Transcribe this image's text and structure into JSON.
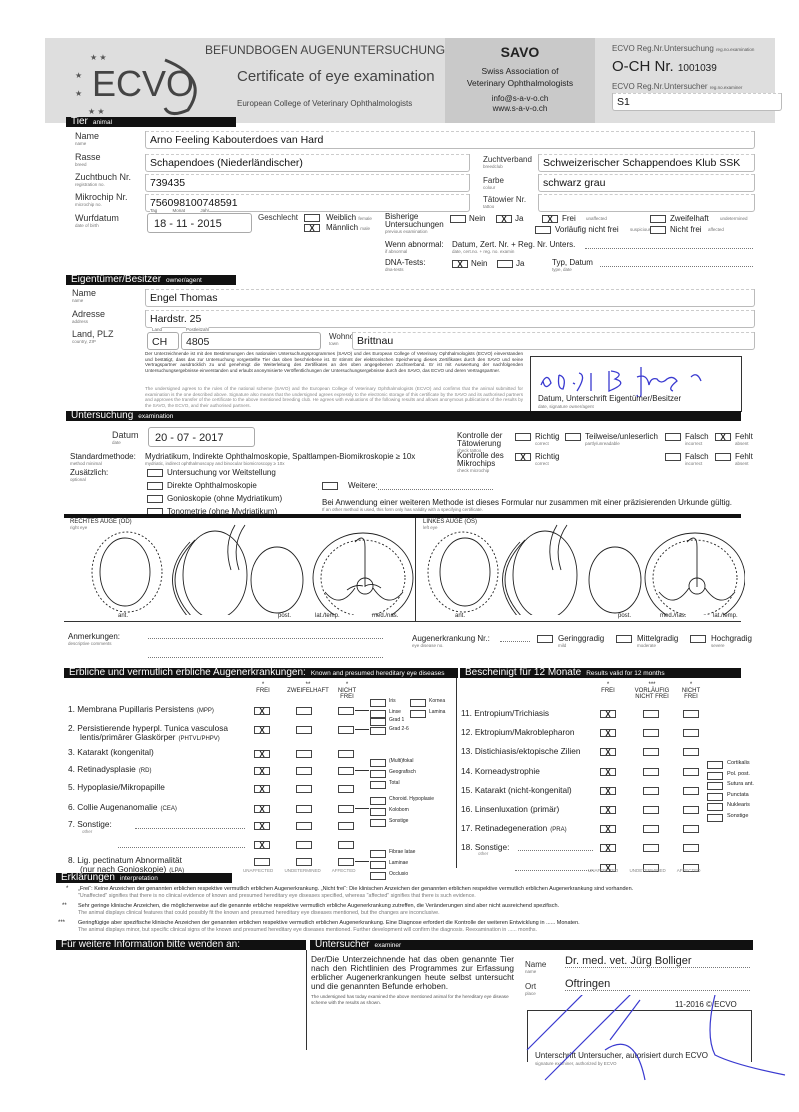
{
  "header": {
    "title_de": "BEFUNDBOGEN AUGENUNTERSUCHUNG",
    "title_en": "Certificate of eye examination",
    "college": "European College of Veterinary Ophthalmologists",
    "logo": "ECVO",
    "savo": "SAVO",
    "savo_line1": "Swiss Association of",
    "savo_line2": "Veterinary Ophthalmologists",
    "email": "info@s-a-v-o.ch",
    "web": "www.s-a-v-o.ch",
    "reg_exam_label": "ECVO Reg.Nr.Untersuchung",
    "reg_exam_sub": "reg.no.examination",
    "och_label": "O-CH Nr.",
    "och_number": "1001039",
    "reg_examiner_label": "ECVO Reg.Nr.Untersucher",
    "reg_examiner_sub": "reg.no.examiner",
    "reg_examiner_value": "S1"
  },
  "animal": {
    "section": "Tier",
    "section_en": "animal",
    "name_label": "Name",
    "name_sub": "name",
    "name": "Arno Feeling Kabouterdoes van Hard",
    "breed_label": "Rasse",
    "breed_sub": "breed",
    "breed": "Schapendoes (Niederländischer)",
    "club_label": "Zuchtverband",
    "club_sub": "breedclub",
    "club": "Schweizerischer Schappendoes Klub SSK",
    "studbook_label": "Zuchtbuch Nr.",
    "studbook_sub": "registration no.",
    "studbook": "739435",
    "colour_label": "Farbe",
    "colour_sub": "colour",
    "colour": "schwarz grau",
    "chip_label": "Mikrochip Nr.",
    "chip_sub": "microchip no.",
    "chip": "756098100748591",
    "tattoo_label": "Tätowier Nr.",
    "tattoo_sub": "tattoo",
    "tattoo": "",
    "dob_label": "Wurfdatum",
    "dob_sub": "date of birth",
    "dob_day": "18",
    "dob_month": "11",
    "dob_year": "2015",
    "day": "Tag",
    "month": "Monat",
    "year": "Jahr",
    "day_en": "day",
    "month_en": "month",
    "year_en": "year",
    "sex_label": "Geschlecht",
    "sex_sub": "sex",
    "female": "Weiblich",
    "female_en": "female",
    "male": "Männlich",
    "male_en": "male",
    "sex_value": "male",
    "prev_label": "Bisherige Untersuchungen",
    "prev_sub": "previous examination",
    "no": "Nein",
    "no_en": "no",
    "yes": "Ja",
    "yes_en": "yes",
    "prev_value": "Ja",
    "free": "Frei",
    "free_en": "unaffected",
    "prelim": "Vorläufig nicht frei",
    "prelim_en": "suspicious",
    "doubt": "Zweifelhaft",
    "doubt_en": "undetermined",
    "notfree": "Nicht frei",
    "notfree_en": "affected",
    "prev_result": "Frei",
    "abnormal_label": "Wenn abnormal:",
    "abnormal_sub": "if abnormal",
    "abnormal_text": "Datum, Zert. Nr. + Reg. Nr. Unters.",
    "abnormal_text_en": "date, cert.no. + reg. no. examin",
    "dna_label": "DNA-Tests:",
    "dna_sub": "dna-tests",
    "dna_value": "Nein",
    "dna_type": "Typ, Datum",
    "dna_type_en": "type, date"
  },
  "owner": {
    "section": "Eigentümer/Besitzer",
    "section_en": "owner/agent",
    "name_label": "Name",
    "name_sub": "name",
    "name": "Engel Thomas",
    "address_label": "Adresse",
    "address_sub": "address",
    "address": "Hardstr. 25",
    "country_label": "Land, PLZ",
    "country_sub": "country, ZIP",
    "land": "Land",
    "land_en": "country",
    "zip_label": "Postleitzahl",
    "zip_en": "ZIP code",
    "country": "CH",
    "zip": "4805",
    "town_label": "Wohnort",
    "town_sub": "town",
    "town": "Brittnau",
    "consent_de": "Der Unterzeichnende ist mit den Bestimmungen des nationalen Untersuchungsprogrammes (SAVO) und des European College of Veterinary Ophthalmologists (ECVO) einverstanden und bestätigt, dass das zur Untersuchung vorgestellte Tier das oben beschriebene ist. Er stimmt der elektronischen Speicherung dieses Zertifikates durch den SAVO und seine Vertragspartner ausdrücklich zu und genehmigt die Weiterleitung des Zertifikates an den oben angegebenen Zuchtverband. Er ist mit Auswertung der nachfolgenden Untersuchungsergebnisse einverstanden und erlaubt anonymisierte Veröffentlichungen der Untersuchungsergebnisse durch den SAVO, das ECVO und deren Vertragspartner.",
    "consent_en": "The undersigned agrees to the rules of the national scheme (SAVO) and the European College of Veterinary Ophthalmologists (ECVO) and confirms that the animal submitted for examination is the one described above. Signature also means that the undersigned agrees expressly to the electronic storage of this certificate by the SAVO and its authorised partners and approves the transfer of the certificate to the above mentioned breeding club. He agrees with evaluations of the following results and allows anonymous publications of the results by the SAVO, the ECVO, and their authorised partners.",
    "signature_handwritten": "20.7.17 B.finger",
    "signature_label": "Datum, Unterschrift Eigentümer/Besitzer",
    "signature_sub": "date, signature owner/agent"
  },
  "exam": {
    "section": "Untersuchung",
    "section_en": "examination",
    "date_label": "Datum",
    "date_sub": "date",
    "day": "20",
    "month": "07",
    "year": "2017",
    "method_label": "Standardmethode:",
    "method_sub": "method minimal",
    "method": "Mydriatikum, Indirekte Ophthalmoskopie, Spaltlampen-Biomikroskopie ≥ 10x",
    "method_en": "mydriatic, indirect ophthalmoscopy and binocular biomicroscopy ≥ 10x",
    "optional_label": "Zusätzlich:",
    "optional_sub": "optional",
    "options": [
      "Untersuchung vor Weitstellung",
      "Direkte Ophthalmoskopie",
      "Gonioskopie (ohne Mydriatikum)",
      "Tonometrie (ohne Mydriatikum)"
    ],
    "further": "Weitere:",
    "note": "Bei Anwendung einer weiteren Methode ist dieses Formular nur zusammen mit einer präzisierenden Urkunde gültig.",
    "note_en": "If an other method is used, this form only has validity with a specifying certificate.",
    "tattoo_check_label": "Kontrolle der Tätowierung",
    "tattoo_check_sub": "check tattoo",
    "chip_check_label": "Kontrolle des Mikrochips",
    "chip_check_sub": "check microchip",
    "correct": "Richtig",
    "correct_en": "correct",
    "partly": "Teilweise/unleserlich",
    "partly_en": "partly/unreadable",
    "wrong": "Falsch",
    "wrong_en": "incorrect",
    "absent": "Fehlt",
    "absent_en": "absent",
    "tattoo_check": "Fehlt",
    "chip_check": "Richtig"
  },
  "eyes": {
    "right": "RECHTES AUGE (OD)",
    "right_en": "right eye",
    "left": "LINKES AUGE (OS)",
    "left_en": "left eye",
    "ant": "ant.",
    "post": "post.",
    "lat": "lat./temp.",
    "med": "med./nas.",
    "comments_label": "Anmerkungen:",
    "comments_sub": "descriptive comments",
    "disease_no_label": "Augenerkrankung Nr.:",
    "disease_no_sub": "eye disease no.",
    "mild": "Geringgradig",
    "mild_en": "mild",
    "moderate": "Mittelgradig",
    "moderate_en": "moderate",
    "severe": "Hochgradig",
    "severe_en": "severe"
  },
  "hereditary": {
    "section": "Erbliche und vermutlich erbliche Augenerkrankungen:",
    "section_en": "Known and presumed hereditary eye diseases",
    "col_free": "FREI",
    "col_doubt": "ZWEIFELHAFT",
    "col_notfree": "NICHT FREI",
    "star1": "*",
    "star2": "**",
    "star3": "***",
    "unaffected": "UNAFFECTED",
    "undetermined": "UNDETERMINED",
    "affected": "AFFECTED",
    "rows": [
      {
        "label": "1. Membrana Pupillaris Persistens",
        "abbr": "(MPP)",
        "value": "frei",
        "subs": [
          "Iris",
          "Linse",
          "Kornea",
          "Lamina"
        ]
      },
      {
        "label": "2. Persistierende hyperpl. Tunica vasculosa",
        "label2": "lentis/primärer Glaskörper",
        "abbr": "(PHTVL/PHPV)",
        "value": "frei",
        "subs": [
          "Grad 1",
          "Grad 2-6"
        ]
      },
      {
        "label": "3. Katarakt (kongenital)",
        "abbr": "",
        "value": "frei",
        "subs": []
      },
      {
        "label": "4. Retinadysplasie",
        "abbr": "(RD)",
        "value": "frei",
        "subs": [
          "(Multi)fokal",
          "Geografisch",
          "Total"
        ]
      },
      {
        "label": "5. Hypoplasie/Mikropapille",
        "abbr": "",
        "value": "frei",
        "subs": []
      },
      {
        "label": "6. Collie Augenanomalie",
        "abbr": "(CEA)",
        "value": "frei",
        "subs": [
          "Choroid. Hypoplasie",
          "Kolobom",
          "Sonstige"
        ]
      },
      {
        "label": "7. Sonstige:",
        "sub": "other",
        "abbr": "",
        "value": "frei",
        "subs": []
      },
      {
        "label": "",
        "abbr": "",
        "value": "frei",
        "subs": []
      },
      {
        "label": "8. Lig. pectinatum Abnormalität",
        "label2": "(nur nach Gonioskopie)",
        "abbr": "(LPA)",
        "value": "",
        "subs": [
          "Fibrae latae",
          "Laminae",
          "Occlusio"
        ]
      }
    ]
  },
  "valid12": {
    "section": "Bescheinigt für 12 Monate",
    "section_en": "Results valid for 12 months",
    "col_free": "FREI",
    "col_prelim": "VORLÄUFIG NICHT FREI",
    "col_notfree": "NICHT FREI",
    "rows": [
      {
        "label": "11. Entropium/Trichiasis",
        "value": "frei"
      },
      {
        "label": "12. Ektropium/Makroblepharon",
        "value": "frei"
      },
      {
        "label": "13. Distichiasis/ektopische Zilien",
        "value": "frei"
      },
      {
        "label": "14. Korneadystrophie",
        "value": "frei"
      },
      {
        "label": "15. Katarakt (nicht-kongenital)",
        "value": "frei"
      },
      {
        "label": "16. Linsenluxation (primär)",
        "value": "frei"
      },
      {
        "label": "17. Retinadegeneration",
        "abbr": "(PRA)",
        "value": "frei"
      },
      {
        "label": "18. Sonstige:",
        "sub": "other",
        "value": "frei"
      },
      {
        "label": "",
        "value": "frei"
      }
    ],
    "cataract_subs": [
      "Cortikalis",
      "Pol. post.",
      "Sutura ant.",
      "Punctata",
      "Nuklearis",
      "Sonstige"
    ]
  },
  "interpretation": {
    "section": "Erklärungen",
    "section_en": "interpretation",
    "lines": [
      {
        "star": "*",
        "de": "„Frei“: Keine Anzeichen der genannten erblichen respektive vermutlich erblichen Augenerkrankung. „Nicht frei“: Die klinischen Anzeichen der genannten erblichen respektive vermutlich erblichen Augenerkrankung sind vorhanden.",
        "en": "\"Unaffected\" signifies that there is no clinical evidence of known and presumed hereditary eye diseases specified, whereas \"affected\" signifies that there is such evidence."
      },
      {
        "star": "**",
        "de": "Sehr geringe klinische Anzeichen, die möglicherweise auf die genannte erbliche respektive vermutlich erbliche Augenerkrankung zutreffen, die Veränderungen sind aber nicht ausreichend spezifisch.",
        "en": "The animal displays clinical features that could possibly fit the known and presumed hereditary eye diseases mentioned, but the changes are inconclusive."
      },
      {
        "star": "***",
        "de": "Geringfügige aber spezifische klinische Anzeichen der genannten erblichen respektive vermutlich erblichen Augenerkrankung. Eine Diagnose erfordert die Kontrolle der weiteren Entwicklung in ...... Monaten.",
        "en": "The animal displays minor, but specific clinical signs of the known and presumed hereditary eye diseases mentioned. Further development will confirm the diagnosis. Reexamination in ...... months."
      }
    ]
  },
  "contact": {
    "section": "Für weitere Information bitte wenden an:"
  },
  "examiner": {
    "section": "Untersucher",
    "section_en": "examiner",
    "statement": "Der/Die Unterzeichnende hat das oben genannte Tier nach den Richtlinien des Programmes zur Erfassung erblicher Augenerkrankungen heute selbst untersucht und die genannten Befunde erhoben.",
    "statement_en": "The undersigned has today examined the above mentioned animal for the hereditary eye disease scheme with the results as shown.",
    "name_label": "Name",
    "name_sub": "name",
    "name": "Dr. med. vet. Jürg Bolliger",
    "place_label": "Ort",
    "place_sub": "place",
    "place": "Oftringen",
    "version": "11-2016 © ECVO",
    "signature_label": "Unterschrift Untersucher, autorisiert durch ECVO",
    "signature_sub": "signature examiner, authorized by ECVO"
  },
  "colors": {
    "header_gray": "#dedede",
    "savo_gray": "#c9c9c9",
    "bar": "#111111",
    "ink_blue": "#3a3ad0"
  }
}
